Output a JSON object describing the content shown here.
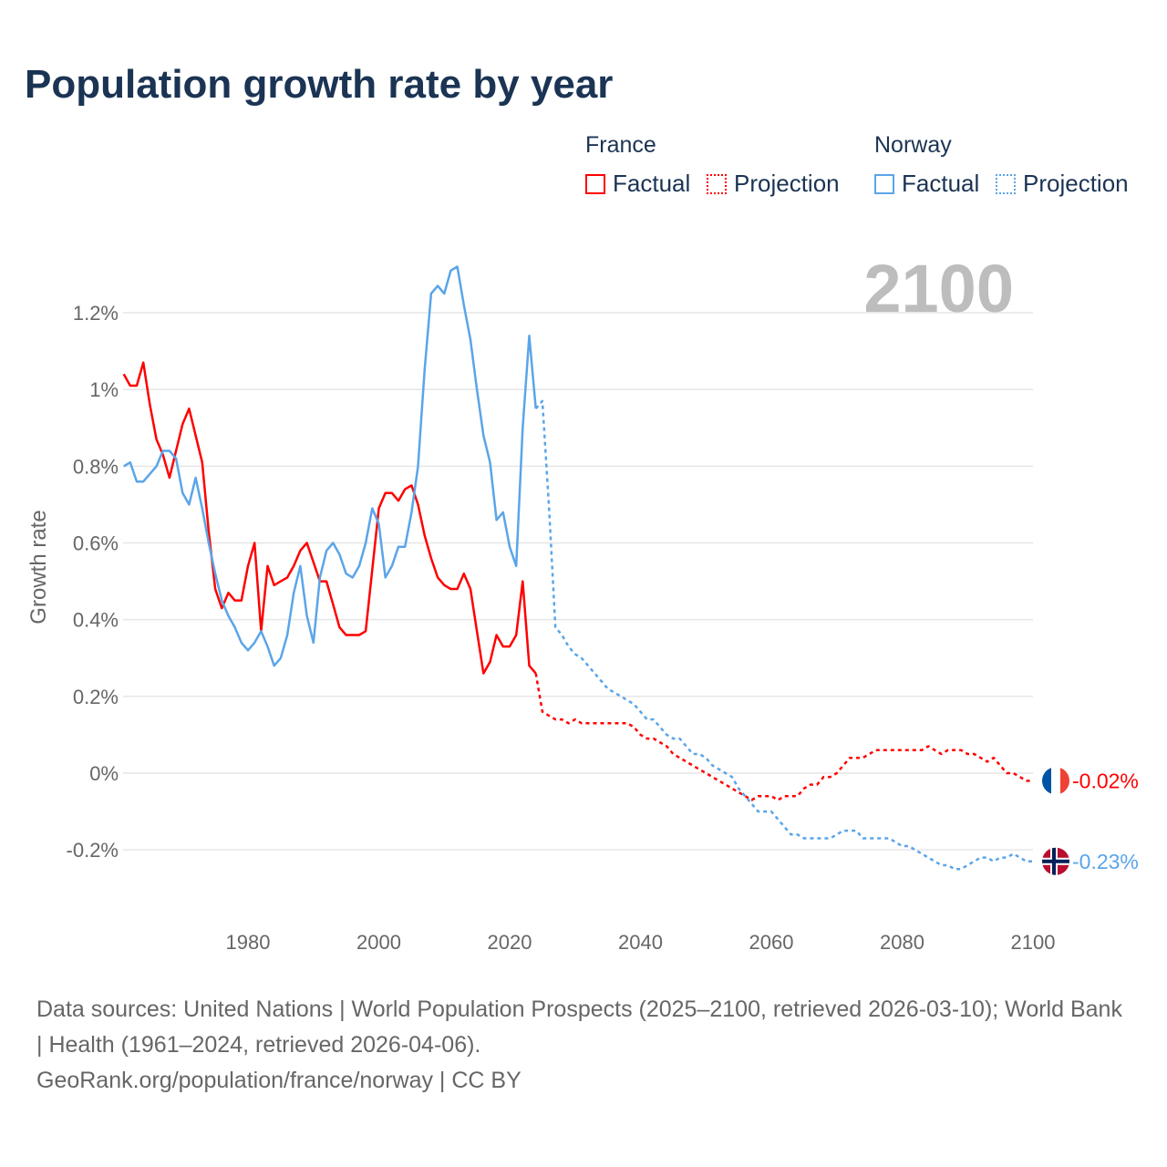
{
  "title": "Population growth rate by year",
  "legend": {
    "groups": [
      {
        "name": "France",
        "factual": "Factual",
        "projection": "Projection",
        "color": "#ff0000"
      },
      {
        "name": "Norway",
        "factual": "Factual",
        "projection": "Projection",
        "color": "#5aa5e8"
      }
    ]
  },
  "year_display": "2100",
  "chart_data": {
    "type": "line",
    "title": "Population growth rate by year",
    "xlabel": "",
    "ylabel": "Growth rate",
    "xlim": [
      1961,
      2100
    ],
    "ylim": [
      -0.3,
      1.35
    ],
    "x_ticks": [
      1980,
      2000,
      2020,
      2040,
      2060,
      2080,
      2100
    ],
    "x_tick_labels": [
      "1980",
      "2000",
      "2020",
      "2040",
      "2060",
      "2080",
      "2100"
    ],
    "y_ticks": [
      -0.2,
      0,
      0.2,
      0.4,
      0.6,
      0.8,
      1.0,
      1.2
    ],
    "y_tick_labels": [
      "-0.2%",
      "0%",
      "0.2%",
      "0.4%",
      "0.6%",
      "0.8%",
      "1%",
      "1.2%"
    ],
    "grid": true,
    "legend_position": "top-right",
    "series": [
      {
        "name": "France Factual",
        "color": "#ff0000",
        "dashed": false,
        "start_year": 1961,
        "values": [
          1.04,
          1.01,
          1.01,
          1.07,
          0.96,
          0.87,
          0.83,
          0.77,
          0.84,
          0.91,
          0.95,
          0.88,
          0.81,
          0.63,
          0.48,
          0.43,
          0.47,
          0.45,
          0.45,
          0.54,
          0.6,
          0.37,
          0.54,
          0.49,
          0.5,
          0.51,
          0.54,
          0.58,
          0.6,
          0.55,
          0.5,
          0.5,
          0.44,
          0.38,
          0.36,
          0.36,
          0.36,
          0.37,
          0.53,
          0.69,
          0.73,
          0.73,
          0.71,
          0.74,
          0.75,
          0.7,
          0.62,
          0.56,
          0.51,
          0.49,
          0.48,
          0.48,
          0.52,
          0.48,
          0.37,
          0.26,
          0.29,
          0.36,
          0.33,
          0.33,
          0.36,
          0.5,
          0.28,
          0.26
        ]
      },
      {
        "name": "France Projection",
        "color": "#ff0000",
        "dashed": true,
        "start_year": 2024,
        "values": [
          0.26,
          0.16,
          0.15,
          0.14,
          0.14,
          0.13,
          0.14,
          0.13,
          0.13,
          0.13,
          0.13,
          0.13,
          0.13,
          0.13,
          0.13,
          0.12,
          0.1,
          0.09,
          0.09,
          0.08,
          0.07,
          0.05,
          0.04,
          0.03,
          0.02,
          0.01,
          0.0,
          -0.01,
          -0.02,
          -0.03,
          -0.04,
          -0.05,
          -0.06,
          -0.07,
          -0.06,
          -0.06,
          -0.06,
          -0.07,
          -0.06,
          -0.06,
          -0.06,
          -0.04,
          -0.03,
          -0.03,
          -0.01,
          -0.01,
          0.0,
          0.02,
          0.04,
          0.04,
          0.04,
          0.05,
          0.06,
          0.06,
          0.06,
          0.06,
          0.06,
          0.06,
          0.06,
          0.06,
          0.07,
          0.06,
          0.05,
          0.06,
          0.06,
          0.06,
          0.05,
          0.05,
          0.04,
          0.03,
          0.04,
          0.02,
          0.0,
          0.0,
          -0.01,
          -0.02,
          -0.02
        ]
      },
      {
        "name": "Norway Factual",
        "color": "#5aa5e8",
        "dashed": false,
        "start_year": 1961,
        "values": [
          0.8,
          0.81,
          0.76,
          0.76,
          0.78,
          0.8,
          0.84,
          0.84,
          0.82,
          0.73,
          0.7,
          0.77,
          0.69,
          0.6,
          0.52,
          0.45,
          0.41,
          0.38,
          0.34,
          0.32,
          0.34,
          0.37,
          0.33,
          0.28,
          0.3,
          0.36,
          0.47,
          0.54,
          0.41,
          0.34,
          0.51,
          0.58,
          0.6,
          0.57,
          0.52,
          0.51,
          0.54,
          0.6,
          0.69,
          0.65,
          0.51,
          0.54,
          0.59,
          0.59,
          0.68,
          0.8,
          1.05,
          1.25,
          1.27,
          1.25,
          1.31,
          1.32,
          1.22,
          1.13,
          1.0,
          0.88,
          0.81,
          0.66,
          0.68,
          0.59,
          0.54,
          0.9,
          1.14,
          0.95
        ]
      },
      {
        "name": "Norway Projection",
        "color": "#5aa5e8",
        "dashed": true,
        "start_year": 2024,
        "values": [
          0.95,
          0.97,
          0.7,
          0.38,
          0.36,
          0.33,
          0.31,
          0.3,
          0.28,
          0.26,
          0.24,
          0.22,
          0.21,
          0.2,
          0.19,
          0.18,
          0.16,
          0.14,
          0.14,
          0.12,
          0.1,
          0.09,
          0.09,
          0.07,
          0.05,
          0.05,
          0.04,
          0.02,
          0.01,
          0.0,
          -0.01,
          -0.04,
          -0.06,
          -0.08,
          -0.1,
          -0.1,
          -0.1,
          -0.12,
          -0.14,
          -0.16,
          -0.16,
          -0.17,
          -0.17,
          -0.17,
          -0.17,
          -0.17,
          -0.16,
          -0.15,
          -0.15,
          -0.15,
          -0.17,
          -0.17,
          -0.17,
          -0.17,
          -0.17,
          -0.18,
          -0.19,
          -0.19,
          -0.2,
          -0.21,
          -0.22,
          -0.23,
          -0.24,
          -0.24,
          -0.25,
          -0.25,
          -0.24,
          -0.23,
          -0.22,
          -0.22,
          -0.23,
          -0.22,
          -0.22,
          -0.21,
          -0.22,
          -0.23,
          -0.23
        ]
      }
    ],
    "end_labels": [
      {
        "country": "France",
        "label": "-0.02%",
        "value": -0.02,
        "color": "#ff0000"
      },
      {
        "country": "Norway",
        "label": "-0.23%",
        "value": -0.23,
        "color": "#5aa5e8"
      }
    ]
  },
  "footer": {
    "sources": "Data sources: United Nations | World Population Prospects (2025–2100, retrieved 2026-03-10); World Bank | Health (1961–2024, retrieved 2026-04-06).",
    "credit": "GeoRank.org/population/france/norway | CC BY"
  }
}
